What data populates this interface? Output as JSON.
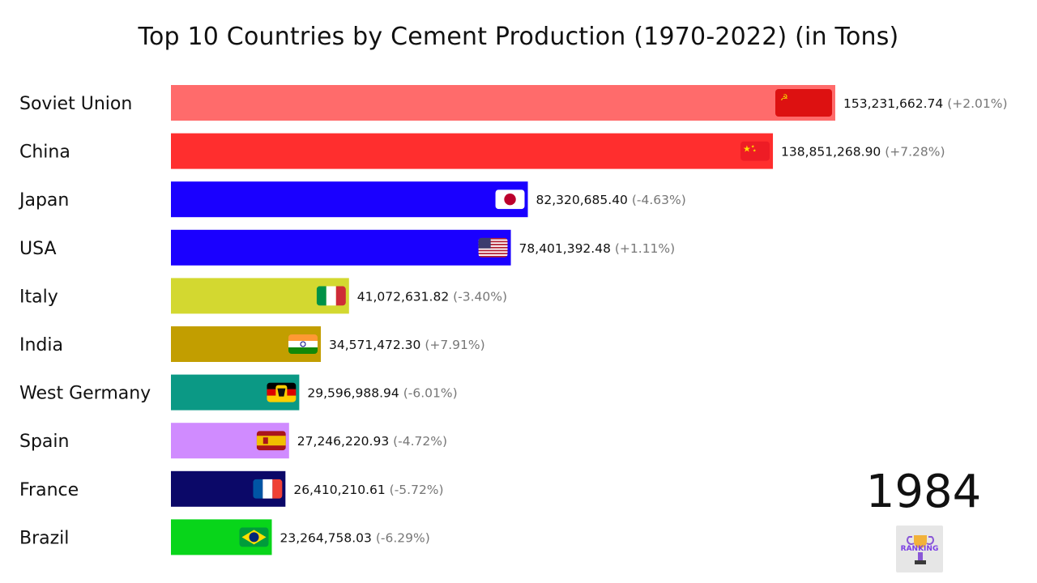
{
  "title": "Top 10 Countries by Cement Production (1970-2022) (in Tons)",
  "year": "1984",
  "logo": {
    "icon": "ranking-trophy-logo",
    "text": "RANKING"
  },
  "chart_data": {
    "type": "bar",
    "orientation": "horizontal",
    "title": "Top 10 Countries by Cement Production (1970-2022) (in Tons)",
    "xlabel": "",
    "ylabel": "",
    "grid": false,
    "categories": [
      "Soviet Union",
      "China",
      "Japan",
      "USA",
      "Italy",
      "India",
      "West Germany",
      "Spain",
      "France",
      "Brazil"
    ],
    "values": [
      153231662.74,
      138851268.9,
      82320685.4,
      78401392.48,
      41072631.82,
      34571472.3,
      29596988.94,
      27246220.93,
      26410210.61,
      23264758.03
    ],
    "value_labels": [
      "153,231,662.74",
      "138,851,268.90",
      "82,320,685.40",
      "78,401,392.48",
      "41,072,631.82",
      "34,571,472.30",
      "29,596,988.94",
      "27,246,220.93",
      "26,410,210.61",
      "23,264,758.03"
    ],
    "change_labels": [
      "(+2.01%)",
      "(+7.28%)",
      "(-4.63%)",
      "(+1.11%)",
      "(-3.40%)",
      "(+7.91%)",
      "(-6.01%)",
      "(-4.72%)",
      "(-5.72%)",
      "(-6.29%)"
    ],
    "colors": [
      "#ff6b6b",
      "#ff2e2e",
      "#1a00ff",
      "#1a00ff",
      "#d3d830",
      "#c29e00",
      "#0b9985",
      "#d08bff",
      "#0b0868",
      "#08d51a"
    ],
    "flags": [
      "soviet-union-flag-icon",
      "china-flag-icon",
      "japan-flag-icon",
      "usa-flag-icon",
      "italy-flag-icon",
      "india-flag-icon",
      "west-germany-flag-icon",
      "spain-flag-icon",
      "france-flag-icon",
      "brazil-flag-icon"
    ]
  }
}
